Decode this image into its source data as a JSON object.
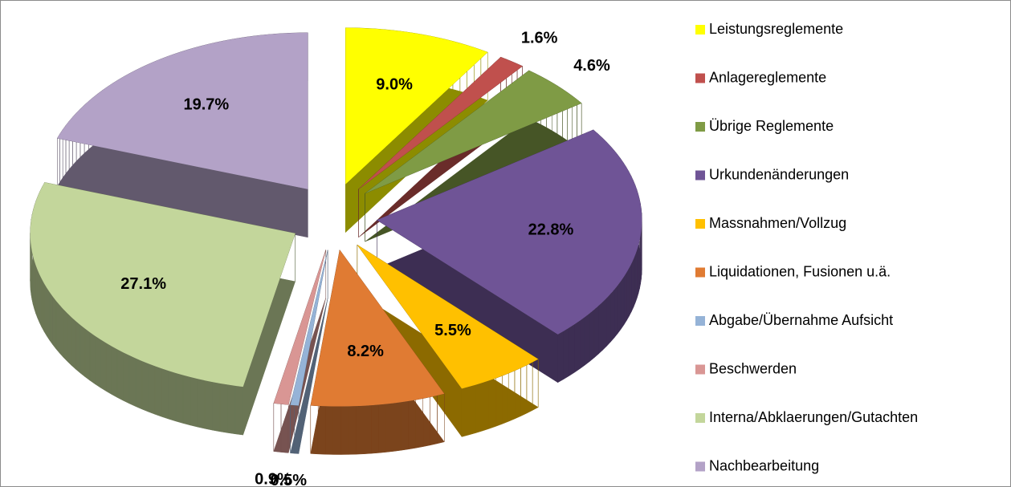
{
  "chart_data": {
    "type": "pie",
    "categories": [
      "Leistungsreglemente",
      "Anlagereglemente",
      "Übrige Reglemente",
      "Urkundenänderungen",
      "Massnahmen/Vollzug",
      "Liquidationen, Fusionen u.ä.",
      "Abgabe/Übernahme Aufsicht",
      "Beschwerden",
      "Interna/Abklaerungen/Gutachten",
      "Nachbearbeitung"
    ],
    "values": [
      9.0,
      1.6,
      4.6,
      22.8,
      5.5,
      8.2,
      0.5,
      0.9,
      27.1,
      19.7
    ],
    "value_labels": [
      "9.0%",
      "1.6%",
      "4.6%",
      "22.8%",
      "5.5%",
      "8.2%",
      "0.5%",
      "0.9%",
      "27.1%",
      "19.7%"
    ],
    "colors": [
      "#ffff00",
      "#c0504d",
      "#7f9b45",
      "#6f5496",
      "#ffc000",
      "#e07b33",
      "#95b3d7",
      "#d99694",
      "#c3d69b",
      "#b3a2c7"
    ],
    "legend": "right"
  }
}
